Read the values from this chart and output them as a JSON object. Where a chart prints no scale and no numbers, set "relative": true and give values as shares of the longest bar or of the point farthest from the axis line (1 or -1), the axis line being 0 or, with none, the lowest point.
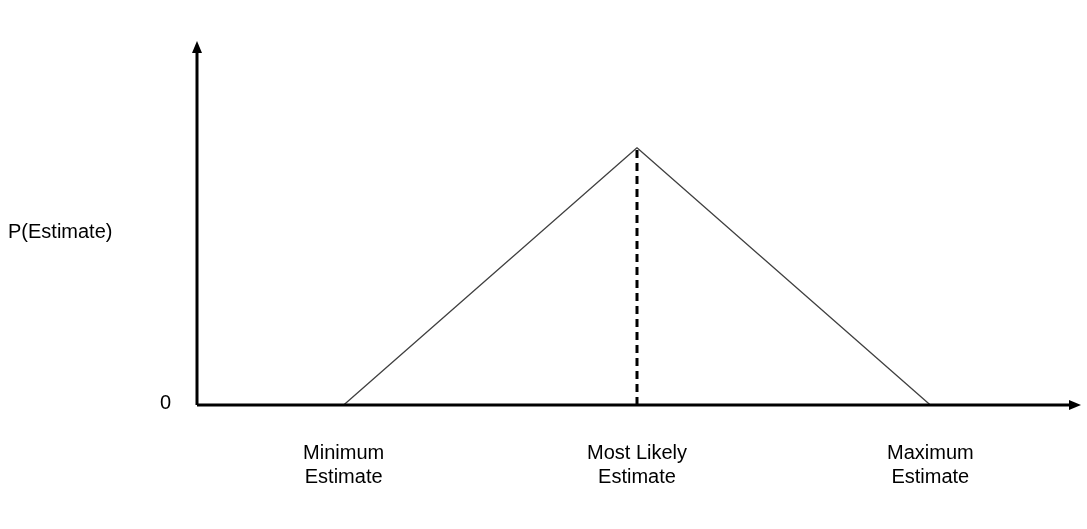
{
  "chart_data": {
    "type": "line",
    "relative": true,
    "ylabel": "P(Estimate)",
    "categories": [
      "Minimum Estimate",
      "Most Likely Estimate",
      "Maximum Estimate"
    ],
    "series": [
      {
        "color": "#404040",
        "values": [
          0,
          1,
          0
        ]
      }
    ],
    "ref_lines": [
      {
        "axis": "x",
        "value": "Most Likely Estimate",
        "line_style": "dashed",
        "color": "#000000"
      }
    ],
    "annotations": [
      "0"
    ],
    "legend": false,
    "grid": false,
    "marker": "none",
    "line_style": "solid"
  }
}
